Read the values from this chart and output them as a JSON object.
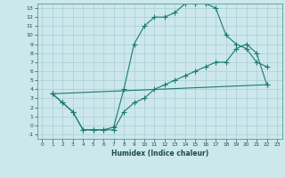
{
  "xlabel": "Humidex (Indice chaleur)",
  "bg_color": "#cce8ec",
  "line_color": "#1a7a6e",
  "grid_color": "#aacdd4",
  "xlim": [
    -0.5,
    23.5
  ],
  "ylim": [
    -1.5,
    13.5
  ],
  "xticks": [
    0,
    1,
    2,
    3,
    4,
    5,
    6,
    7,
    8,
    9,
    10,
    11,
    12,
    13,
    14,
    15,
    16,
    17,
    18,
    19,
    20,
    21,
    22,
    23
  ],
  "yticks": [
    -1,
    0,
    1,
    2,
    3,
    4,
    5,
    6,
    7,
    8,
    9,
    10,
    11,
    12,
    13
  ],
  "line1_x": [
    1,
    2,
    3,
    4,
    5,
    6,
    7,
    8,
    9,
    10,
    11,
    12,
    13,
    14,
    15,
    16,
    17,
    18,
    19,
    20,
    21,
    22
  ],
  "line1_y": [
    3.5,
    2.5,
    1.5,
    -0.5,
    -0.5,
    -0.5,
    -0.2,
    4.0,
    9.0,
    11.0,
    12.0,
    12.0,
    12.5,
    13.5,
    13.5,
    13.5,
    13.0,
    10.0,
    9.0,
    8.5,
    7.0,
    6.5
  ],
  "line2_x": [
    1,
    22
  ],
  "line2_y": [
    3.5,
    4.5
  ],
  "line3_x": [
    1,
    2,
    3,
    4,
    5,
    6,
    7,
    8,
    9,
    10,
    11,
    12,
    13,
    14,
    15,
    16,
    17,
    18,
    19,
    20,
    21,
    22
  ],
  "line3_y": [
    3.5,
    2.5,
    1.5,
    -0.5,
    -0.5,
    -0.5,
    -0.5,
    1.5,
    2.5,
    3.0,
    4.0,
    4.5,
    5.0,
    5.5,
    6.0,
    6.5,
    7.0,
    7.0,
    8.5,
    9.0,
    8.0,
    4.5
  ]
}
